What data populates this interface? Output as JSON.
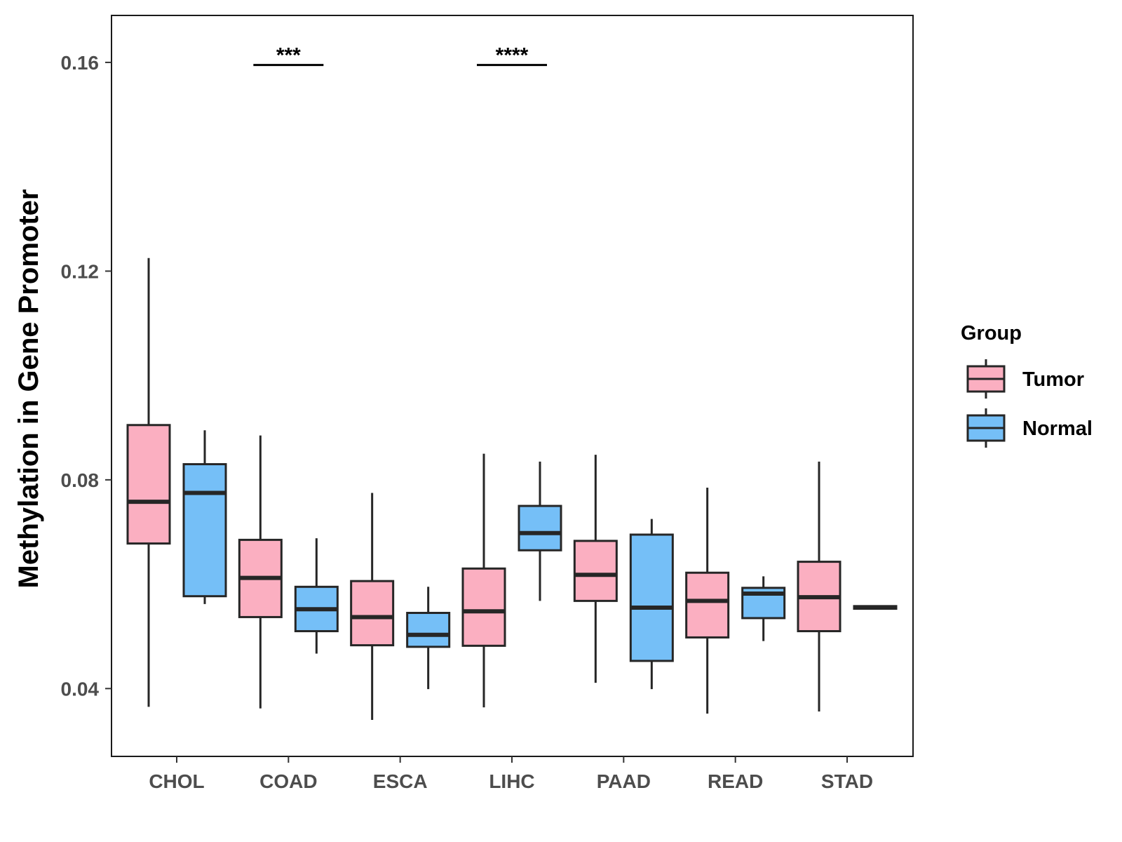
{
  "chart_data": {
    "type": "boxplot",
    "title": "",
    "xlabel": "",
    "ylabel": "Methylation in Gene Promoter",
    "ylim": [
      0.027,
      0.169
    ],
    "yticks": [
      0.04,
      0.08,
      0.12,
      0.16
    ],
    "ytick_labels": [
      "0.04",
      "0.08",
      "0.12",
      "0.16"
    ],
    "categories": [
      "CHOL",
      "COAD",
      "ESCA",
      "LIHC",
      "PAAD",
      "READ",
      "STAD"
    ],
    "grid": false,
    "legend": {
      "title": "Group",
      "position": "right",
      "entries": [
        {
          "name": "Tumor",
          "color": "#FBAFC1"
        },
        {
          "name": "Normal",
          "color": "#75BFF7"
        }
      ]
    },
    "series": [
      {
        "name": "Tumor",
        "color": "#FBAFC1",
        "boxes": [
          {
            "category": "CHOL",
            "min": 0.0365,
            "q1": 0.0678,
            "median": 0.0758,
            "q3": 0.0905,
            "max": 0.1225
          },
          {
            "category": "COAD",
            "min": 0.0362,
            "q1": 0.0537,
            "median": 0.0612,
            "q3": 0.0685,
            "max": 0.0885
          },
          {
            "category": "ESCA",
            "min": 0.034,
            "q1": 0.0483,
            "median": 0.0537,
            "q3": 0.0606,
            "max": 0.0775
          },
          {
            "category": "LIHC",
            "min": 0.0364,
            "q1": 0.0482,
            "median": 0.0548,
            "q3": 0.063,
            "max": 0.085
          },
          {
            "category": "PAAD",
            "min": 0.0411,
            "q1": 0.0568,
            "median": 0.0618,
            "q3": 0.0683,
            "max": 0.0848
          },
          {
            "category": "READ",
            "min": 0.0352,
            "q1": 0.0498,
            "median": 0.0568,
            "q3": 0.0622,
            "max": 0.0785
          },
          {
            "category": "STAD",
            "min": 0.0356,
            "q1": 0.051,
            "median": 0.0575,
            "q3": 0.0643,
            "max": 0.0835
          }
        ]
      },
      {
        "name": "Normal",
        "color": "#75BFF7",
        "boxes": [
          {
            "category": "CHOL",
            "min": 0.0562,
            "q1": 0.0577,
            "median": 0.0775,
            "q3": 0.083,
            "max": 0.0895
          },
          {
            "category": "COAD",
            "min": 0.0467,
            "q1": 0.051,
            "median": 0.0552,
            "q3": 0.0595,
            "max": 0.0688
          },
          {
            "category": "ESCA",
            "min": 0.0399,
            "q1": 0.048,
            "median": 0.0503,
            "q3": 0.0545,
            "max": 0.0595
          },
          {
            "category": "LIHC",
            "min": 0.0568,
            "q1": 0.0665,
            "median": 0.0698,
            "q3": 0.075,
            "max": 0.0835
          },
          {
            "category": "PAAD",
            "min": 0.0399,
            "q1": 0.0453,
            "median": 0.0555,
            "q3": 0.0695,
            "max": 0.0725
          },
          {
            "category": "READ",
            "min": 0.0491,
            "q1": 0.0535,
            "median": 0.0582,
            "q3": 0.0593,
            "max": 0.0615
          },
          {
            "category": "STAD",
            "min": 0.0553,
            "q1": 0.0553,
            "median": 0.0555,
            "q3": 0.0558,
            "max": 0.0558
          }
        ]
      }
    ],
    "annotations": [
      {
        "category": "COAD",
        "text": "***",
        "y": 0.1595
      },
      {
        "category": "LIHC",
        "text": "****",
        "y": 0.1595
      }
    ]
  }
}
